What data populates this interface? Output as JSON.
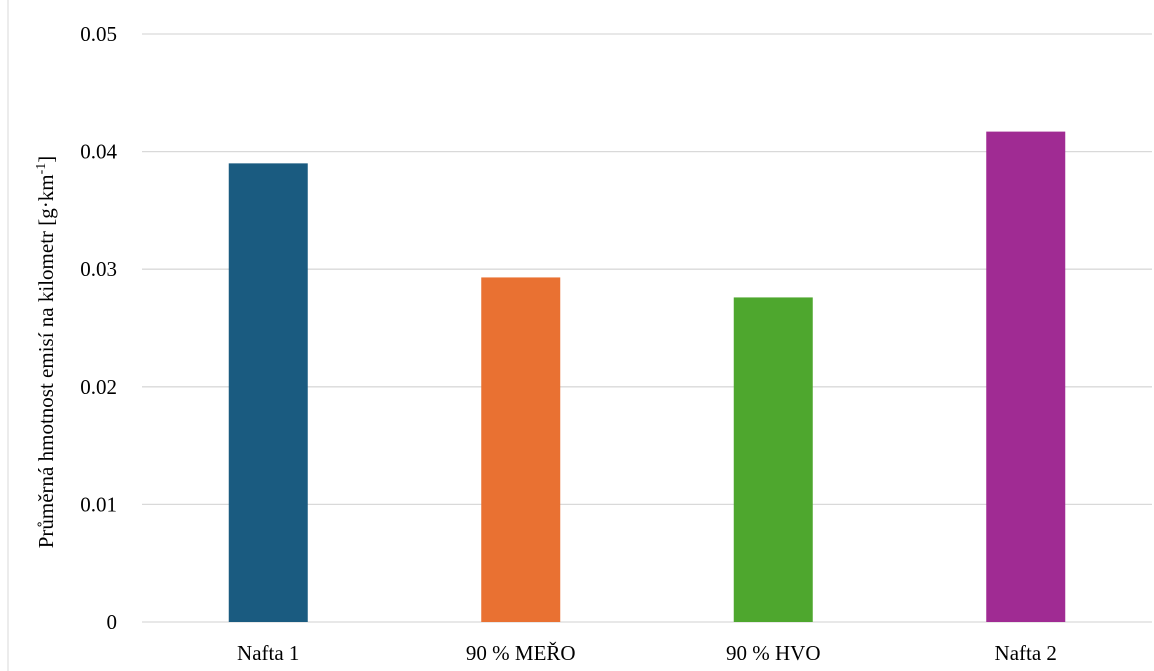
{
  "chart_data": {
    "type": "bar",
    "title": "",
    "xlabel": "",
    "ylabel": "Průměrná hmotnost emisí na kilometr [g·km",
    "ylabel_sup": "-1",
    "ylabel_close": "]",
    "categories": [
      "Nafta 1",
      "90 % MEŘO",
      "90 % HVO",
      "Nafta 2"
    ],
    "values": [
      0.039,
      0.0293,
      0.0276,
      0.0417
    ],
    "colors": [
      "#1a5b80",
      "#e97132",
      "#4ea72e",
      "#a02b93"
    ],
    "ylim": [
      0,
      0.05
    ],
    "yticks": [
      "0",
      "0.01",
      "0.02",
      "0.03",
      "0.04",
      "0.05"
    ],
    "grid": true,
    "legend": "none"
  }
}
